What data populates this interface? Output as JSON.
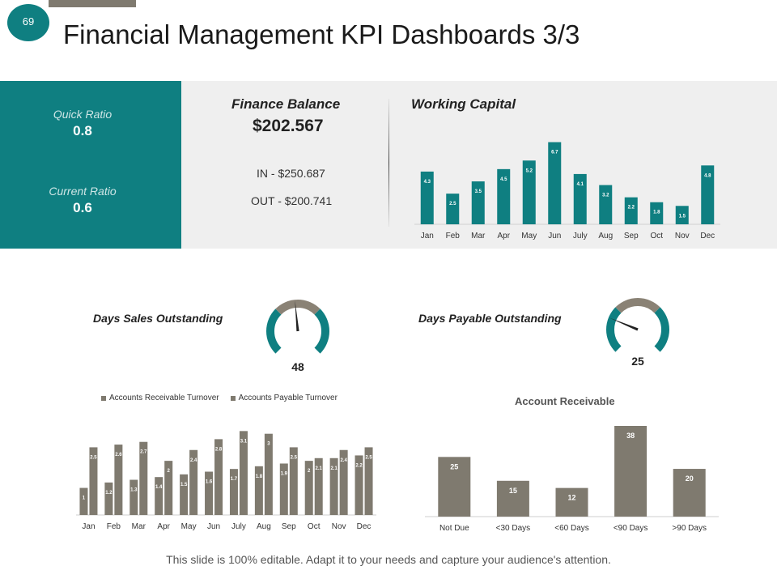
{
  "header": {
    "page_number": "69",
    "title": "Financial Management KPI Dashboards 3/3"
  },
  "ratios": {
    "quick_ratio_label": "Quick Ratio",
    "quick_ratio_value": "0.8",
    "current_ratio_label": "Current Ratio",
    "current_ratio_value": "0.6"
  },
  "finance_balance": {
    "title": "Finance Balance",
    "amount": "$202.567",
    "in_text": "IN - $250.687",
    "out_text": "OUT - $200.741"
  },
  "gauges": {
    "dso": {
      "title": "Days Sales Outstanding",
      "value": 48,
      "value_label": "48"
    },
    "dpo": {
      "title": "Days Payable Outstanding",
      "value": 25,
      "value_label": "25"
    }
  },
  "footer": {
    "text": "This slide is 100% editable. Adapt it to your needs and capture your audience's attention."
  },
  "colors": {
    "teal": "#0f7f81",
    "bar": "#7f7a6f",
    "gauge_gray": "#8a8275"
  },
  "chart_data": [
    {
      "id": "working_capital",
      "type": "bar",
      "title": "Working Capital",
      "categories": [
        "Jan",
        "Feb",
        "Mar",
        "Apr",
        "May",
        "Jun",
        "July",
        "Aug",
        "Sep",
        "Oct",
        "Nov",
        "Dec"
      ],
      "values": [
        4.3,
        2.5,
        3.5,
        4.5,
        5.2,
        6.7,
        4.1,
        3.2,
        2.2,
        1.8,
        1.5,
        4.8
      ],
      "ylim": [
        0,
        7
      ]
    },
    {
      "id": "turnover",
      "type": "bar",
      "title": "",
      "categories": [
        "Jan",
        "Feb",
        "Mar",
        "Apr",
        "May",
        "Jun",
        "July",
        "Aug",
        "Sep",
        "Oct",
        "Nov",
        "Dec"
      ],
      "series": [
        {
          "name": "Accounts Receivable Turnover",
          "values": [
            1,
            1.2,
            1.3,
            1.4,
            1.5,
            1.6,
            1.7,
            1.8,
            1.9,
            2,
            2.1,
            2.2
          ]
        },
        {
          "name": "Accounts Payable Turnover",
          "values": [
            2.5,
            2.6,
            2.7,
            2,
            2.4,
            2.8,
            3.1,
            3,
            2.5,
            2.1,
            2.4,
            2.5
          ]
        }
      ],
      "legend": "top-left",
      "ylim": [
        0,
        3.2
      ]
    },
    {
      "id": "account_receivable",
      "type": "bar",
      "title": "Account Receivable",
      "categories": [
        "Not Due",
        "<30 Days",
        "<60 Days",
        "<90 Days",
        ">90 Days"
      ],
      "values": [
        25,
        15,
        12,
        38,
        20
      ],
      "ylim": [
        0,
        38
      ]
    }
  ]
}
